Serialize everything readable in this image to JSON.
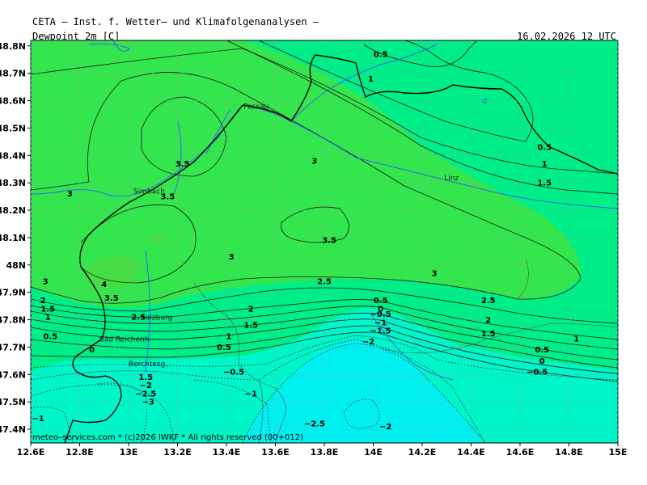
{
  "header": {
    "institute": "CETA – Inst. f. Wetter– und Klimafolgenanalysen –",
    "variable": "Dewpoint 2m [C]",
    "datetime": "16.02.2026 12 UTC"
  },
  "copyright": "meteo–services.com * (c)2026 IWKF * All rights reserved (00+012)",
  "map": {
    "lon_range": [
      12.6,
      15.0
    ],
    "lat_range": [
      47.35,
      48.82
    ],
    "lat_ticks": [
      "48.8N",
      "48.7N",
      "48.6N",
      "48.5N",
      "48.4N",
      "48.3N",
      "48.2N",
      "48.1N",
      "48N",
      "47.9N",
      "47.8N",
      "47.7N",
      "47.6N",
      "47.5N",
      "47.4N"
    ],
    "lon_ticks": [
      "12.6E",
      "12.8E",
      "13E",
      "13.2E",
      "13.4E",
      "13.6E",
      "13.8E",
      "14E",
      "14.2E",
      "14.4E",
      "14.6E",
      "14.8E",
      "15E"
    ],
    "cities": [
      {
        "name": "Passau",
        "lon": 13.47,
        "lat": 48.57
      },
      {
        "name": "Linz",
        "lon": 14.29,
        "lat": 48.31
      },
      {
        "name": "Simbach",
        "lon": 13.02,
        "lat": 48.26
      },
      {
        "name": "Salzburg",
        "lon": 13.05,
        "lat": 47.8
      },
      {
        "name": "Bad Reichenh.",
        "lon": 12.88,
        "lat": 47.72
      },
      {
        "name": "Berchtesg.",
        "lon": 13.0,
        "lat": 47.63
      }
    ],
    "colors": {
      "warm": "#33e64d",
      "mid": "#00ee88",
      "cold": "#00ffee",
      "coldest": "#00eeff",
      "river": "#3366ee",
      "border": "#000000"
    }
  },
  "contour_labels": [
    {
      "text": "0.5",
      "lon": 14.03,
      "lat": 48.76
    },
    {
      "text": "1",
      "lon": 13.99,
      "lat": 48.67
    },
    {
      "text": "0.5",
      "lon": 14.7,
      "lat": 48.42
    },
    {
      "text": "1",
      "lon": 14.7,
      "lat": 48.36
    },
    {
      "text": "1.5",
      "lon": 14.7,
      "lat": 48.29
    },
    {
      "text": "3",
      "lon": 13.76,
      "lat": 48.37
    },
    {
      "text": "3.5",
      "lon": 13.22,
      "lat": 48.36
    },
    {
      "text": "3.5",
      "lon": 13.16,
      "lat": 48.24
    },
    {
      "text": "3",
      "lon": 12.76,
      "lat": 48.25
    },
    {
      "text": "3.5",
      "lon": 13.82,
      "lat": 48.08
    },
    {
      "text": "3",
      "lon": 13.42,
      "lat": 48.02
    },
    {
      "text": "3",
      "lon": 14.25,
      "lat": 47.96
    },
    {
      "text": "2.5",
      "lon": 13.8,
      "lat": 47.93
    },
    {
      "text": "4",
      "lon": 12.9,
      "lat": 47.92
    },
    {
      "text": "3.5",
      "lon": 12.93,
      "lat": 47.87
    },
    {
      "text": "3",
      "lon": 12.66,
      "lat": 47.93
    },
    {
      "text": "2",
      "lon": 12.65,
      "lat": 47.86
    },
    {
      "text": "1.5",
      "lon": 12.67,
      "lat": 47.83
    },
    {
      "text": "1",
      "lon": 12.67,
      "lat": 47.8
    },
    {
      "text": "0.5",
      "lon": 12.68,
      "lat": 47.73
    },
    {
      "text": "2.5",
      "lon": 13.04,
      "lat": 47.8
    },
    {
      "text": "2",
      "lon": 13.5,
      "lat": 47.83
    },
    {
      "text": "1.5",
      "lon": 13.5,
      "lat": 47.77
    },
    {
      "text": "1",
      "lon": 13.41,
      "lat": 47.73
    },
    {
      "text": "0.5",
      "lon": 13.39,
      "lat": 47.69
    },
    {
      "text": "0",
      "lon": 12.85,
      "lat": 47.68
    },
    {
      "text": "2.5",
      "lon": 14.47,
      "lat": 47.86
    },
    {
      "text": "2",
      "lon": 14.47,
      "lat": 47.79
    },
    {
      "text": "1.5",
      "lon": 14.47,
      "lat": 47.74
    },
    {
      "text": "1",
      "lon": 14.83,
      "lat": 47.72
    },
    {
      "text": "0.5",
      "lon": 14.69,
      "lat": 47.68
    },
    {
      "text": "0",
      "lon": 14.69,
      "lat": 47.64
    },
    {
      "text": "−0.5",
      "lon": 14.67,
      "lat": 47.6
    },
    {
      "text": "0.5",
      "lon": 14.03,
      "lat": 47.86
    },
    {
      "text": "0",
      "lon": 14.03,
      "lat": 47.83
    },
    {
      "text": "−0.5",
      "lon": 14.03,
      "lat": 47.81
    },
    {
      "text": "−1",
      "lon": 14.03,
      "lat": 47.78
    },
    {
      "text": "−1.5",
      "lon": 14.03,
      "lat": 47.75
    },
    {
      "text": "−2",
      "lon": 13.98,
      "lat": 47.71
    },
    {
      "text": "−0.5",
      "lon": 13.43,
      "lat": 47.6
    },
    {
      "text": "−1",
      "lon": 13.5,
      "lat": 47.52
    },
    {
      "text": "1.5",
      "lon": 13.07,
      "lat": 47.58
    },
    {
      "text": "−2",
      "lon": 13.07,
      "lat": 47.55
    },
    {
      "text": "−2.5",
      "lon": 13.07,
      "lat": 47.52
    },
    {
      "text": "−3",
      "lon": 13.08,
      "lat": 47.49
    },
    {
      "text": "−1",
      "lon": 12.63,
      "lat": 47.43
    },
    {
      "text": "−2.5",
      "lon": 13.76,
      "lat": 47.41
    },
    {
      "text": "−2",
      "lon": 14.05,
      "lat": 47.4
    }
  ]
}
